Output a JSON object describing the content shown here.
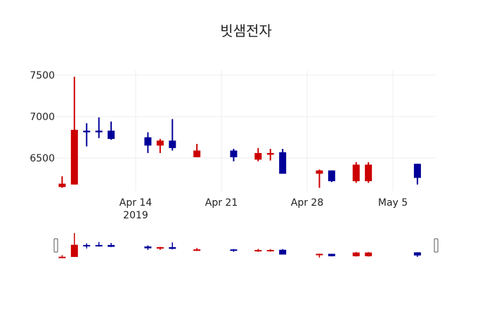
{
  "title": "빗샘전자",
  "colors": {
    "increasing": "#cc0000",
    "decreasing": "#000099",
    "grid": "#eeeeee"
  },
  "chart_data": {
    "type": "candlestick",
    "title": "빗샘전자",
    "xlabel": "",
    "ylabel": "",
    "ylim": [
      6100,
      7550
    ],
    "yticks": [
      6500,
      7000,
      7500
    ],
    "xticks": [
      {
        "date": "2019-04-14",
        "label": "Apr 14",
        "sublabel": "2019"
      },
      {
        "date": "2019-04-21",
        "label": "Apr 21"
      },
      {
        "date": "2019-04-28",
        "label": "Apr 28"
      },
      {
        "date": "2019-05-05",
        "label": "May 5"
      }
    ],
    "xrange": [
      "2019-04-08",
      "2019-05-08"
    ],
    "grid": true,
    "rangeslider": true,
    "candles": [
      {
        "date": "2019-04-08",
        "open": 6150,
        "high": 6280,
        "low": 6140,
        "close": 6190
      },
      {
        "date": "2019-04-09",
        "open": 6180,
        "high": 7480,
        "low": 6180,
        "close": 6840
      },
      {
        "date": "2019-04-10",
        "open": 6830,
        "high": 6920,
        "low": 6640,
        "close": 6810
      },
      {
        "date": "2019-04-11",
        "open": 6830,
        "high": 6990,
        "low": 6740,
        "close": 6810
      },
      {
        "date": "2019-04-12",
        "open": 6830,
        "high": 6940,
        "low": 6720,
        "close": 6730
      },
      {
        "date": "2019-04-15",
        "open": 6750,
        "high": 6810,
        "low": 6560,
        "close": 6650
      },
      {
        "date": "2019-04-16",
        "open": 6650,
        "high": 6730,
        "low": 6560,
        "close": 6710
      },
      {
        "date": "2019-04-17",
        "open": 6710,
        "high": 6970,
        "low": 6590,
        "close": 6620
      },
      {
        "date": "2019-04-19",
        "open": 6510,
        "high": 6670,
        "low": 6510,
        "close": 6590
      },
      {
        "date": "2019-04-22",
        "open": 6590,
        "high": 6610,
        "low": 6460,
        "close": 6510
      },
      {
        "date": "2019-04-24",
        "open": 6480,
        "high": 6620,
        "low": 6460,
        "close": 6560
      },
      {
        "date": "2019-04-25",
        "open": 6540,
        "high": 6610,
        "low": 6470,
        "close": 6560
      },
      {
        "date": "2019-04-26",
        "open": 6570,
        "high": 6610,
        "low": 6310,
        "close": 6310
      },
      {
        "date": "2019-04-29",
        "open": 6310,
        "high": 6360,
        "low": 6140,
        "close": 6350
      },
      {
        "date": "2019-04-30",
        "open": 6350,
        "high": 6350,
        "low": 6210,
        "close": 6220
      },
      {
        "date": "2019-05-02",
        "open": 6220,
        "high": 6450,
        "low": 6200,
        "close": 6420
      },
      {
        "date": "2019-05-03",
        "open": 6220,
        "high": 6450,
        "low": 6200,
        "close": 6420
      },
      {
        "date": "2019-05-07",
        "open": 6430,
        "high": 6430,
        "low": 6180,
        "close": 6260
      }
    ]
  }
}
